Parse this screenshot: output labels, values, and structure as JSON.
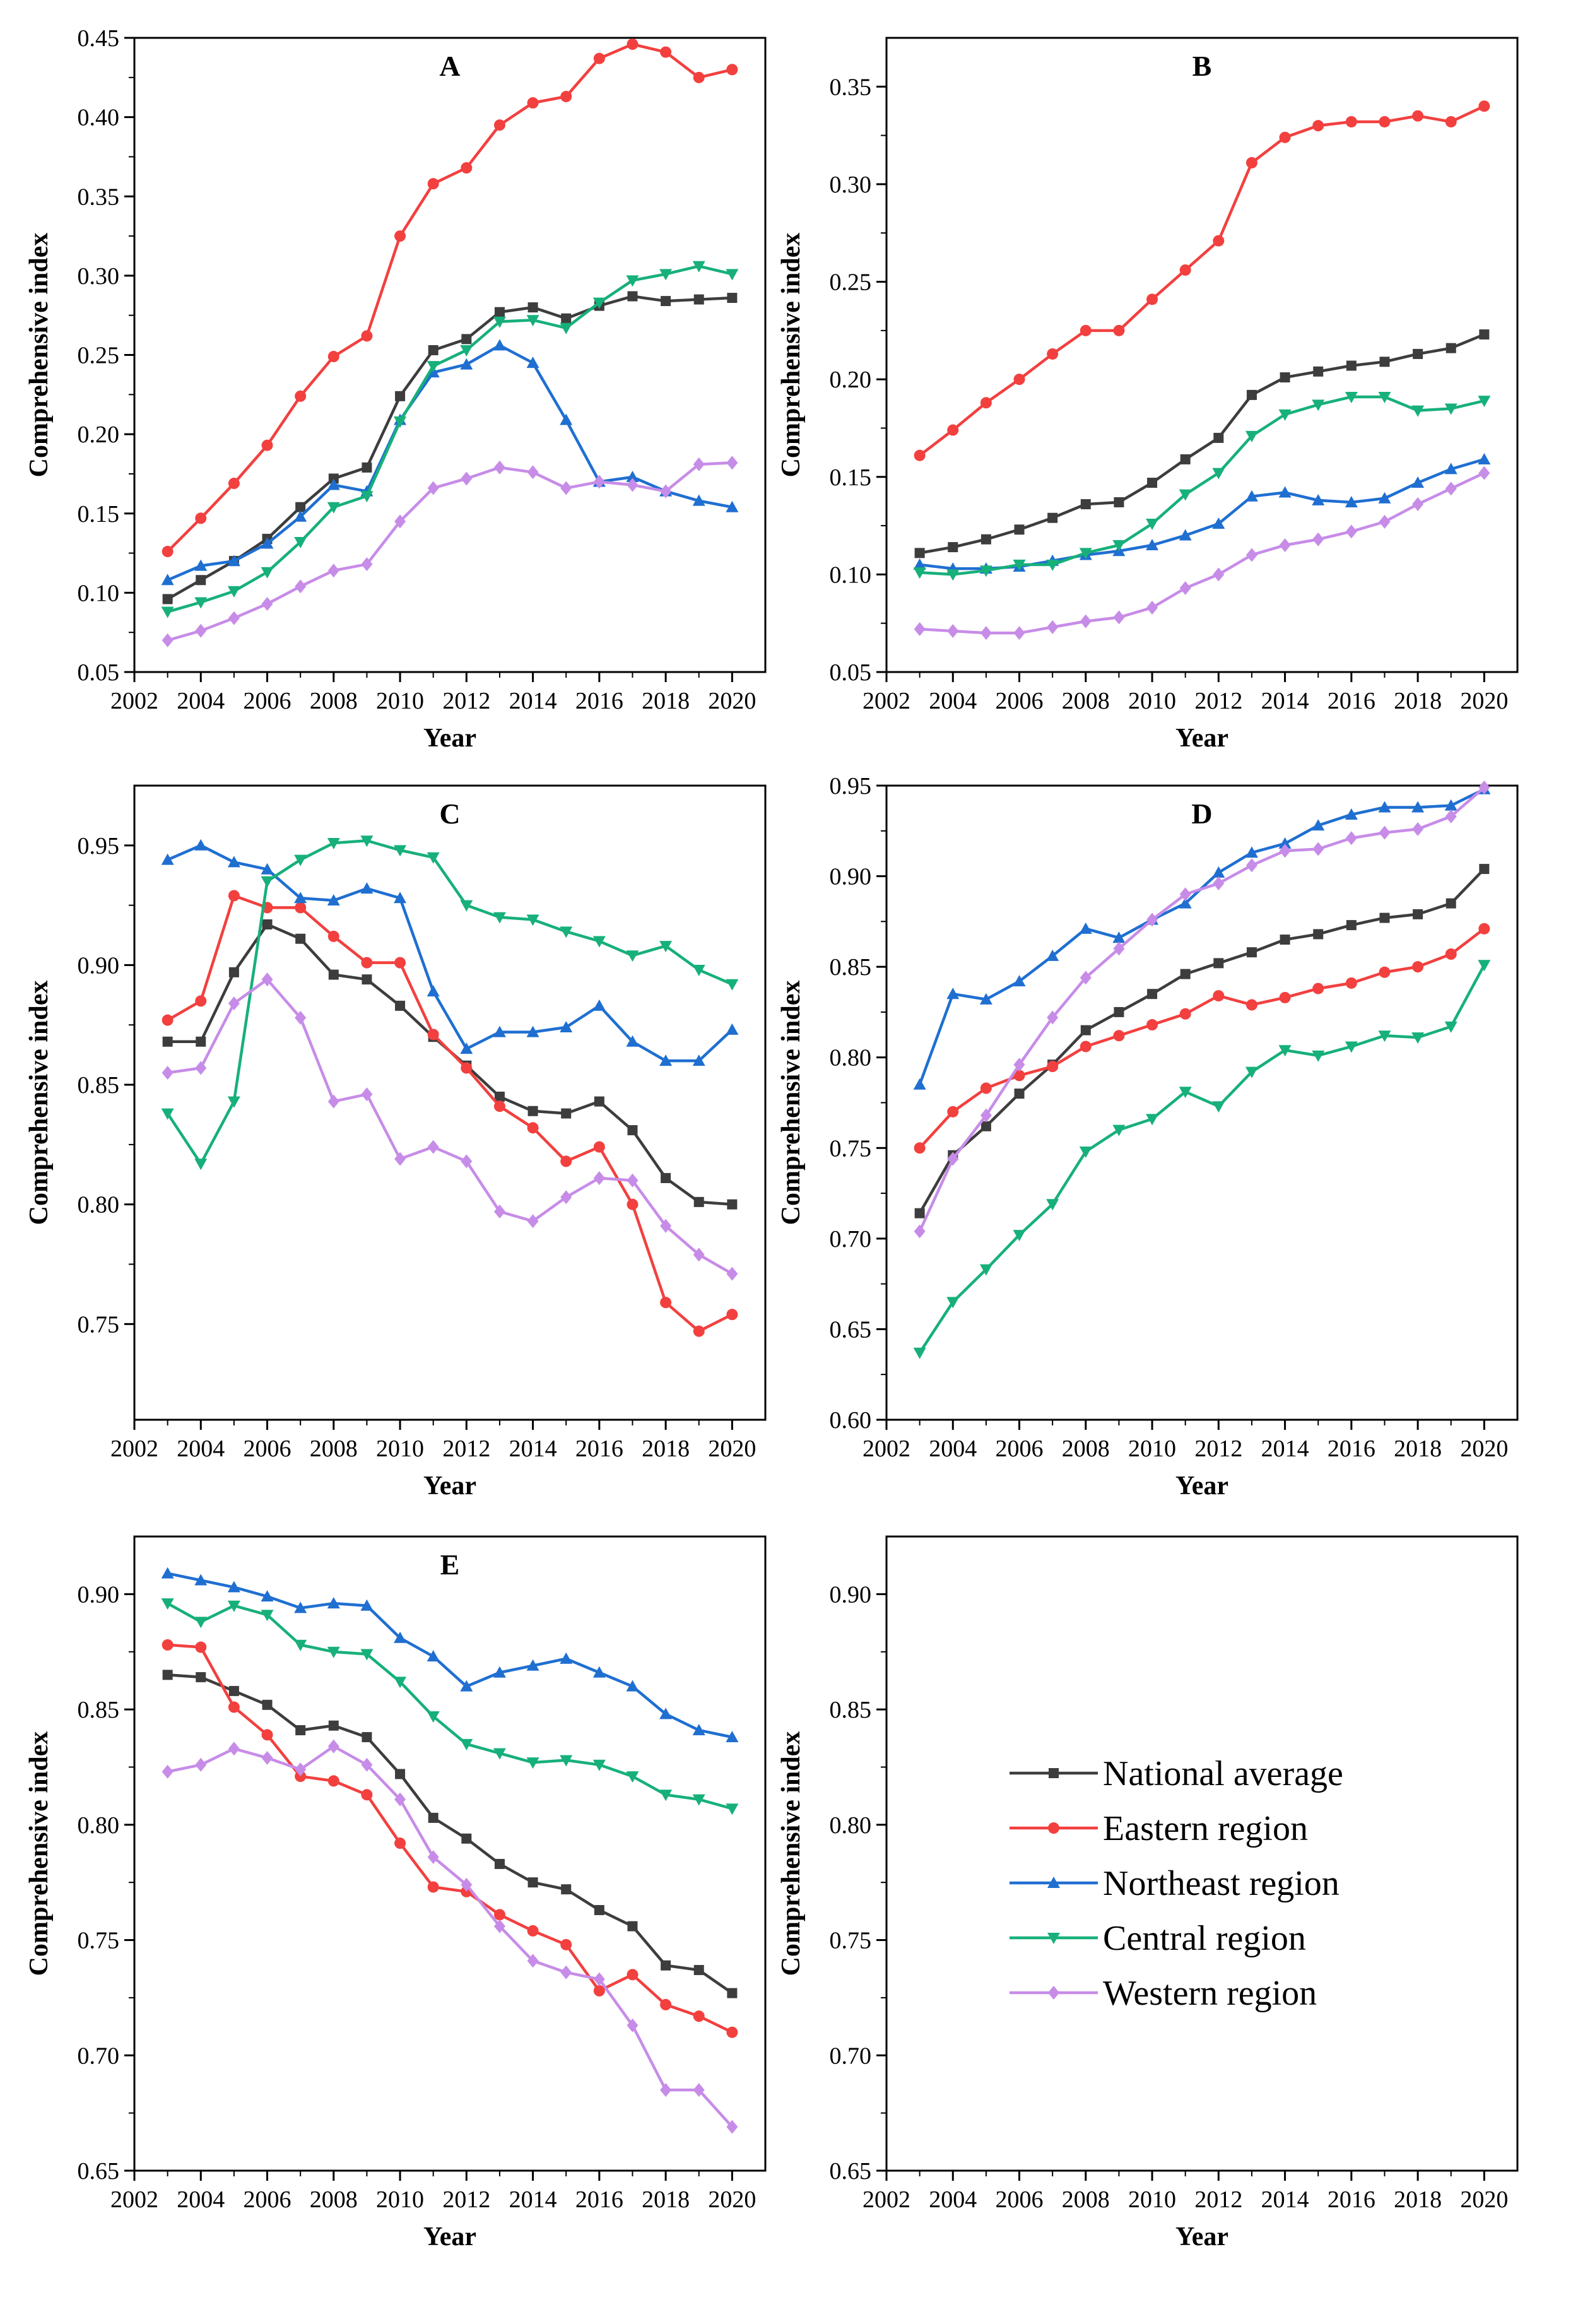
{
  "figure": {
    "series_styles": [
      {
        "name": "National average",
        "color": "#3d3d3d",
        "marker": "square"
      },
      {
        "name": "Eastern region",
        "color": "#f2403f",
        "marker": "circle"
      },
      {
        "name": "Northeast region",
        "color": "#1f6fd1",
        "marker": "triangle-up"
      },
      {
        "name": "Central region",
        "color": "#17b07a",
        "marker": "triangle-down"
      },
      {
        "name": "Western region",
        "color": "#c78ce8",
        "marker": "diamond"
      }
    ],
    "legend": {
      "entries": [
        "National average",
        " Eastern region",
        "Northeast region",
        "Central region",
        "Western region"
      ]
    }
  },
  "chart_data": [
    {
      "id": "A",
      "type": "line",
      "title": "A",
      "xlabel": "Year",
      "ylabel": "Comprehensive index",
      "xlim": [
        2002,
        2021
      ],
      "ylim": [
        0.05,
        0.45
      ],
      "xticks": [
        2002,
        2004,
        2006,
        2008,
        2010,
        2012,
        2014,
        2016,
        2018,
        2020
      ],
      "yticks": [
        0.05,
        0.1,
        0.15,
        0.2,
        0.25,
        0.3,
        0.35,
        0.4,
        0.45
      ],
      "ytick_labels": [
        "0.05",
        "0.10",
        "0.15",
        "0.20",
        "0.25",
        "0.30",
        "0.35",
        "0.40",
        "0.45"
      ],
      "x": [
        2003,
        2004,
        2005,
        2006,
        2007,
        2008,
        2009,
        2010,
        2011,
        2012,
        2013,
        2014,
        2015,
        2016,
        2017,
        2018,
        2019,
        2020
      ],
      "series": [
        {
          "name": "National average",
          "values": [
            0.096,
            0.108,
            0.12,
            0.134,
            0.154,
            0.172,
            0.179,
            0.224,
            0.253,
            0.26,
            0.277,
            0.28,
            0.273,
            0.281,
            0.287,
            0.284,
            0.285,
            0.286
          ]
        },
        {
          "name": "Eastern region",
          "values": [
            0.126,
            0.147,
            0.169,
            0.193,
            0.224,
            0.249,
            0.262,
            0.325,
            0.358,
            0.368,
            0.395,
            0.409,
            0.413,
            0.437,
            0.446,
            0.441,
            0.425,
            0.43
          ]
        },
        {
          "name": "Northeast region",
          "values": [
            0.108,
            0.117,
            0.12,
            0.131,
            0.148,
            0.168,
            0.164,
            0.209,
            0.239,
            0.244,
            0.256,
            0.245,
            0.209,
            0.17,
            0.173,
            0.164,
            0.158,
            0.154
          ]
        },
        {
          "name": "Central region",
          "values": [
            0.088,
            0.094,
            0.101,
            0.113,
            0.132,
            0.154,
            0.161,
            0.208,
            0.243,
            0.253,
            0.271,
            0.272,
            0.267,
            0.283,
            0.297,
            0.301,
            0.306,
            0.301
          ]
        },
        {
          "name": "Western region",
          "values": [
            0.07,
            0.076,
            0.084,
            0.093,
            0.104,
            0.114,
            0.118,
            0.145,
            0.166,
            0.172,
            0.179,
            0.176,
            0.166,
            0.17,
            0.168,
            0.164,
            0.181,
            0.182
          ]
        }
      ]
    },
    {
      "id": "B",
      "type": "line",
      "title": "B",
      "xlabel": "Year",
      "ylabel": "Comprehensive index",
      "xlim": [
        2002,
        2021
      ],
      "ylim": [
        0.05,
        0.375
      ],
      "xticks": [
        2002,
        2004,
        2006,
        2008,
        2010,
        2012,
        2014,
        2016,
        2018,
        2020
      ],
      "yticks": [
        0.05,
        0.1,
        0.15,
        0.2,
        0.25,
        0.3,
        0.35
      ],
      "ytick_labels": [
        "0.05",
        "0.10",
        "0.15",
        "0.20",
        "0.25",
        "0.30",
        "0.35"
      ],
      "x": [
        2003,
        2004,
        2005,
        2006,
        2007,
        2008,
        2009,
        2010,
        2011,
        2012,
        2013,
        2014,
        2015,
        2016,
        2017,
        2018,
        2019,
        2020
      ],
      "series": [
        {
          "name": "National average",
          "values": [
            0.111,
            0.114,
            0.118,
            0.123,
            0.129,
            0.136,
            0.137,
            0.147,
            0.159,
            0.17,
            0.192,
            0.201,
            0.204,
            0.207,
            0.209,
            0.213,
            0.216,
            0.223
          ]
        },
        {
          "name": "Eastern region",
          "values": [
            0.161,
            0.174,
            0.188,
            0.2,
            0.213,
            0.225,
            0.225,
            0.241,
            0.256,
            0.271,
            0.311,
            0.324,
            0.33,
            0.332,
            0.332,
            0.335,
            0.332,
            0.34
          ]
        },
        {
          "name": "Northeast region",
          "values": [
            0.105,
            0.103,
            0.103,
            0.104,
            0.107,
            0.11,
            0.112,
            0.115,
            0.12,
            0.126,
            0.14,
            0.142,
            0.138,
            0.137,
            0.139,
            0.147,
            0.154,
            0.159
          ]
        },
        {
          "name": "Central region",
          "values": [
            0.101,
            0.1,
            0.102,
            0.105,
            0.105,
            0.111,
            0.115,
            0.126,
            0.141,
            0.152,
            0.171,
            0.182,
            0.187,
            0.191,
            0.191,
            0.184,
            0.185,
            0.189
          ]
        },
        {
          "name": "Western region",
          "values": [
            0.072,
            0.071,
            0.07,
            0.07,
            0.073,
            0.076,
            0.078,
            0.083,
            0.093,
            0.1,
            0.11,
            0.115,
            0.118,
            0.122,
            0.127,
            0.136,
            0.144,
            0.152
          ]
        }
      ]
    },
    {
      "id": "C",
      "type": "line",
      "title": "C",
      "xlabel": "Year",
      "ylabel": "Comprehensive index",
      "xlim": [
        2002,
        2021
      ],
      "ylim": [
        0.71,
        0.975
      ],
      "xticks": [
        2002,
        2004,
        2006,
        2008,
        2010,
        2012,
        2014,
        2016,
        2018,
        2020
      ],
      "yticks": [
        0.75,
        0.8,
        0.85,
        0.9,
        0.95
      ],
      "ytick_labels": [
        "0.75",
        "0.80",
        "0.85",
        "0.90",
        "0.95"
      ],
      "x": [
        2003,
        2004,
        2005,
        2006,
        2007,
        2008,
        2009,
        2010,
        2011,
        2012,
        2013,
        2014,
        2015,
        2016,
        2017,
        2018,
        2019,
        2020
      ],
      "series": [
        {
          "name": "National average",
          "values": [
            0.868,
            0.868,
            0.897,
            0.917,
            0.911,
            0.896,
            0.894,
            0.883,
            0.87,
            0.858,
            0.845,
            0.839,
            0.838,
            0.843,
            0.831,
            0.811,
            0.801,
            0.8
          ]
        },
        {
          "name": "Eastern region",
          "values": [
            0.877,
            0.885,
            0.929,
            0.924,
            0.924,
            0.912,
            0.901,
            0.901,
            0.871,
            0.857,
            0.841,
            0.832,
            0.818,
            0.824,
            0.8,
            0.759,
            0.747,
            0.754
          ]
        },
        {
          "name": "Northeast region",
          "values": [
            0.944,
            0.95,
            0.943,
            0.94,
            0.928,
            0.927,
            0.932,
            0.928,
            0.889,
            0.865,
            0.872,
            0.872,
            0.874,
            0.883,
            0.868,
            0.86,
            0.86,
            0.873
          ]
        },
        {
          "name": "Central region",
          "values": [
            0.838,
            0.817,
            0.843,
            0.935,
            0.944,
            0.951,
            0.952,
            0.948,
            0.945,
            0.925,
            0.92,
            0.919,
            0.914,
            0.91,
            0.904,
            0.908,
            0.898,
            0.892
          ]
        },
        {
          "name": "Western region",
          "values": [
            0.855,
            0.857,
            0.884,
            0.894,
            0.878,
            0.843,
            0.846,
            0.819,
            0.824,
            0.818,
            0.797,
            0.793,
            0.803,
            0.811,
            0.81,
            0.791,
            0.779,
            0.771
          ]
        }
      ]
    },
    {
      "id": "D",
      "type": "line",
      "title": "D",
      "xlabel": "Year",
      "ylabel": "Comprehensive index",
      "xlim": [
        2002,
        2021
      ],
      "ylim": [
        0.6,
        0.95
      ],
      "xticks": [
        2002,
        2004,
        2006,
        2008,
        2010,
        2012,
        2014,
        2016,
        2018,
        2020
      ],
      "yticks": [
        0.6,
        0.65,
        0.7,
        0.75,
        0.8,
        0.85,
        0.9,
        0.95
      ],
      "ytick_labels": [
        "0.60",
        "0.65",
        "0.70",
        "0.75",
        "0.80",
        "0.85",
        "0.90",
        "0.95"
      ],
      "x": [
        2003,
        2004,
        2005,
        2006,
        2007,
        2008,
        2009,
        2010,
        2011,
        2012,
        2013,
        2014,
        2015,
        2016,
        2017,
        2018,
        2019,
        2020
      ],
      "series": [
        {
          "name": "National average",
          "values": [
            0.714,
            0.746,
            0.762,
            0.78,
            0.796,
            0.815,
            0.825,
            0.835,
            0.846,
            0.852,
            0.858,
            0.865,
            0.868,
            0.873,
            0.877,
            0.879,
            0.885,
            0.904
          ]
        },
        {
          "name": "Eastern region",
          "values": [
            0.75,
            0.77,
            0.783,
            0.79,
            0.795,
            0.806,
            0.812,
            0.818,
            0.824,
            0.834,
            0.829,
            0.833,
            0.838,
            0.841,
            0.847,
            0.85,
            0.857,
            0.871
          ]
        },
        {
          "name": "Northeast region",
          "values": [
            0.785,
            0.835,
            0.832,
            0.842,
            0.856,
            0.871,
            0.866,
            0.876,
            0.885,
            0.902,
            0.913,
            0.918,
            0.928,
            0.934,
            0.938,
            0.938,
            0.939,
            0.948
          ]
        },
        {
          "name": "Central region",
          "values": [
            0.637,
            0.665,
            0.683,
            0.702,
            0.719,
            0.748,
            0.76,
            0.766,
            0.781,
            0.773,
            0.792,
            0.804,
            0.801,
            0.806,
            0.812,
            0.811,
            0.817,
            0.851
          ]
        },
        {
          "name": "Western region",
          "values": [
            0.704,
            0.744,
            0.768,
            0.796,
            0.822,
            0.844,
            0.86,
            0.876,
            0.89,
            0.896,
            0.906,
            0.914,
            0.915,
            0.921,
            0.924,
            0.926,
            0.933,
            0.949
          ]
        }
      ]
    },
    {
      "id": "E",
      "type": "line",
      "title": "E",
      "xlabel": "Year",
      "ylabel": "Comprehensive index",
      "xlim": [
        2002,
        2021
      ],
      "ylim": [
        0.65,
        0.925
      ],
      "xticks": [
        2002,
        2004,
        2006,
        2008,
        2010,
        2012,
        2014,
        2016,
        2018,
        2020
      ],
      "yticks": [
        0.65,
        0.7,
        0.75,
        0.8,
        0.85,
        0.9
      ],
      "ytick_labels": [
        "0.65",
        "0.70",
        "0.75",
        "0.80",
        "0.85",
        "0.90"
      ],
      "x": [
        2003,
        2004,
        2005,
        2006,
        2007,
        2008,
        2009,
        2010,
        2011,
        2012,
        2013,
        2014,
        2015,
        2016,
        2017,
        2018,
        2019,
        2020
      ],
      "series": [
        {
          "name": "National average",
          "values": [
            0.865,
            0.864,
            0.858,
            0.852,
            0.841,
            0.843,
            0.838,
            0.822,
            0.803,
            0.794,
            0.783,
            0.775,
            0.772,
            0.763,
            0.756,
            0.739,
            0.737,
            0.727
          ]
        },
        {
          "name": "Eastern region",
          "values": [
            0.878,
            0.877,
            0.851,
            0.839,
            0.821,
            0.819,
            0.813,
            0.792,
            0.773,
            0.771,
            0.761,
            0.754,
            0.748,
            0.728,
            0.735,
            0.722,
            0.717,
            0.71
          ]
        },
        {
          "name": "Northeast region",
          "values": [
            0.909,
            0.906,
            0.903,
            0.899,
            0.894,
            0.896,
            0.895,
            0.881,
            0.873,
            0.86,
            0.866,
            0.869,
            0.872,
            0.866,
            0.86,
            0.848,
            0.841,
            0.838
          ]
        },
        {
          "name": "Central region",
          "values": [
            0.896,
            0.888,
            0.895,
            0.891,
            0.878,
            0.875,
            0.874,
            0.862,
            0.847,
            0.835,
            0.831,
            0.827,
            0.828,
            0.826,
            0.821,
            0.813,
            0.811,
            0.807
          ]
        },
        {
          "name": "Western region",
          "values": [
            0.823,
            0.826,
            0.833,
            0.829,
            0.824,
            0.834,
            0.826,
            0.811,
            0.786,
            0.774,
            0.756,
            0.741,
            0.736,
            0.733,
            0.713,
            0.685,
            0.685,
            0.669
          ]
        }
      ]
    },
    {
      "id": "legend-panel",
      "type": "line",
      "title": "",
      "xlabel": "Year",
      "ylabel": "Comprehensive index",
      "xlim": [
        2002,
        2021
      ],
      "ylim": [
        0.65,
        0.925
      ],
      "xticks": [
        2002,
        2004,
        2006,
        2008,
        2010,
        2012,
        2014,
        2016,
        2018,
        2020
      ],
      "yticks": [
        0.65,
        0.7,
        0.75,
        0.8,
        0.85,
        0.9
      ],
      "ytick_labels": [
        "0.65",
        "0.70",
        "0.75",
        "0.80",
        "0.85",
        "0.90"
      ],
      "x": [],
      "series": []
    }
  ]
}
